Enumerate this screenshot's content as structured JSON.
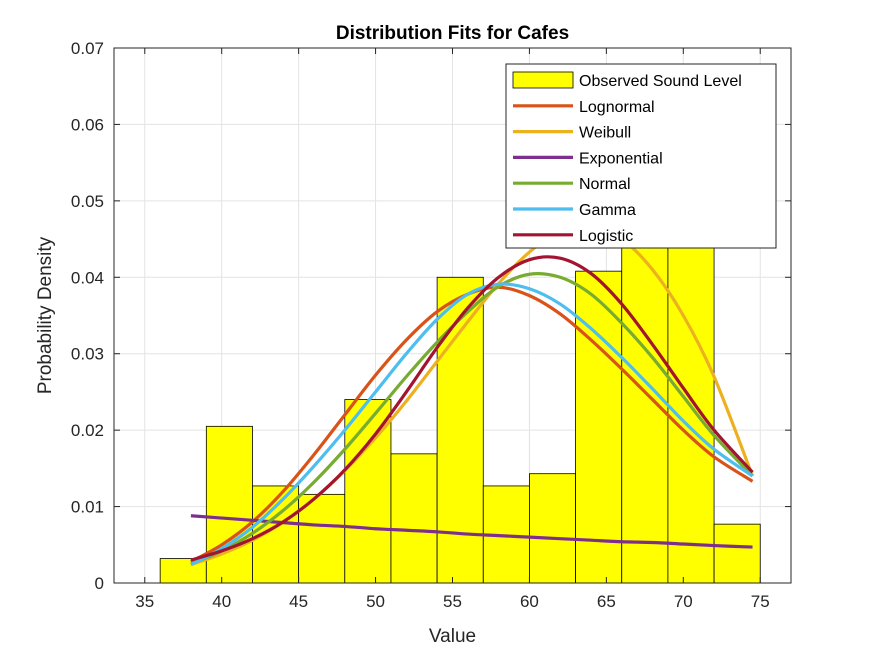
{
  "chart_data": {
    "type": "bar",
    "title": "Distribution Fits for Cafes",
    "xlabel": "Value",
    "ylabel": "Probability Density",
    "xlim": [
      33,
      77
    ],
    "ylim": [
      0,
      0.07
    ],
    "x_ticks": [
      35,
      40,
      45,
      50,
      55,
      60,
      65,
      70,
      75
    ],
    "y_ticks": [
      0,
      0.01,
      0.02,
      0.03,
      0.04,
      0.05,
      0.06,
      0.07
    ],
    "x_tick_labels": [
      "35",
      "40",
      "45",
      "50",
      "55",
      "60",
      "65",
      "70",
      "75"
    ],
    "y_tick_labels": [
      "0",
      "0.01",
      "0.02",
      "0.03",
      "0.04",
      "0.05",
      "0.06",
      "0.07"
    ],
    "grid": true,
    "legend_position": "top-right",
    "histogram": {
      "name": "Observed Sound Level",
      "color": "#FFFF00",
      "bins": [
        {
          "x0": 36.0,
          "x1": 39.0,
          "value": 0.0032
        },
        {
          "x0": 39.0,
          "x1": 42.0,
          "value": 0.0205
        },
        {
          "x0": 42.0,
          "x1": 45.0,
          "value": 0.0127
        },
        {
          "x0": 45.0,
          "x1": 48.0,
          "value": 0.0116
        },
        {
          "x0": 48.0,
          "x1": 51.0,
          "value": 0.024
        },
        {
          "x0": 51.0,
          "x1": 54.0,
          "value": 0.0169
        },
        {
          "x0": 54.0,
          "x1": 57.0,
          "value": 0.04
        },
        {
          "x0": 57.0,
          "x1": 60.0,
          "value": 0.0127
        },
        {
          "x0": 60.0,
          "x1": 63.0,
          "value": 0.0143
        },
        {
          "x0": 63.0,
          "x1": 66.0,
          "value": 0.0408
        },
        {
          "x0": 66.0,
          "x1": 69.0,
          "value": 0.044
        },
        {
          "x0": 69.0,
          "x1": 72.0,
          "value": 0.044
        },
        {
          "x0": 72.0,
          "x1": 75.0,
          "value": 0.0077
        }
      ]
    },
    "series": [
      {
        "name": "Lognormal",
        "color": "#D95319",
        "x": [
          38,
          40,
          42,
          44,
          46,
          48,
          50,
          52,
          54,
          56,
          58,
          60,
          62,
          64,
          66,
          68,
          70,
          72,
          74.5
        ],
        "y": [
          0.0028,
          0.005,
          0.008,
          0.012,
          0.0168,
          0.022,
          0.0272,
          0.0318,
          0.0355,
          0.0378,
          0.0387,
          0.0376,
          0.0352,
          0.0318,
          0.028,
          0.024,
          0.02,
          0.0165,
          0.0133
        ]
      },
      {
        "name": "Weibull",
        "color": "#EDB120",
        "x": [
          38,
          40,
          42,
          44,
          46,
          48,
          50,
          52,
          54,
          56,
          58,
          60,
          62,
          64,
          66,
          68,
          70,
          72,
          74.5
        ],
        "y": [
          0.0024,
          0.0038,
          0.0056,
          0.008,
          0.011,
          0.0147,
          0.019,
          0.0238,
          0.029,
          0.0342,
          0.0392,
          0.0433,
          0.046,
          0.0466,
          0.045,
          0.041,
          0.035,
          0.027,
          0.014
        ]
      },
      {
        "name": "Exponential",
        "color": "#7E2F8E",
        "x": [
          38,
          40,
          42,
          44,
          46,
          48,
          50,
          52,
          54,
          56,
          58,
          60,
          62,
          64,
          66,
          68,
          70,
          72,
          74.5
        ],
        "y": [
          0.0088,
          0.0085,
          0.0082,
          0.0079,
          0.0076,
          0.0074,
          0.0071,
          0.0069,
          0.0067,
          0.0064,
          0.0062,
          0.006,
          0.0058,
          0.0056,
          0.0054,
          0.0053,
          0.0051,
          0.0049,
          0.0047
        ]
      },
      {
        "name": "Normal",
        "color": "#77AC30",
        "x": [
          38,
          40,
          42,
          44,
          46,
          48,
          50,
          52,
          54,
          56,
          58,
          60,
          62,
          64,
          66,
          68,
          70,
          72,
          74.5
        ],
        "y": [
          0.0025,
          0.0042,
          0.0065,
          0.0095,
          0.0132,
          0.0175,
          0.0222,
          0.027,
          0.0315,
          0.0355,
          0.0388,
          0.0404,
          0.04,
          0.0378,
          0.034,
          0.0295,
          0.0244,
          0.0193,
          0.014
        ]
      },
      {
        "name": "Gamma",
        "color": "#4DBEEE",
        "x": [
          38,
          40,
          42,
          44,
          46,
          48,
          50,
          52,
          54,
          56,
          58,
          60,
          62,
          64,
          66,
          68,
          70,
          72,
          74.5
        ],
        "y": [
          0.0024,
          0.0045,
          0.0073,
          0.011,
          0.0153,
          0.02,
          0.025,
          0.03,
          0.0345,
          0.0378,
          0.0391,
          0.0385,
          0.0365,
          0.0333,
          0.0295,
          0.0254,
          0.0212,
          0.0175,
          0.014
        ]
      },
      {
        "name": "Logistic",
        "color": "#A2142F",
        "x": [
          38,
          40,
          42,
          44,
          46,
          48,
          50,
          52,
          54,
          56,
          58,
          60,
          62,
          64,
          66,
          68,
          70,
          72,
          74.5
        ],
        "y": [
          0.003,
          0.0042,
          0.0058,
          0.008,
          0.011,
          0.0148,
          0.0195,
          0.025,
          0.0308,
          0.036,
          0.04,
          0.0423,
          0.0425,
          0.0405,
          0.0365,
          0.0312,
          0.0255,
          0.02,
          0.0145
        ]
      }
    ]
  }
}
